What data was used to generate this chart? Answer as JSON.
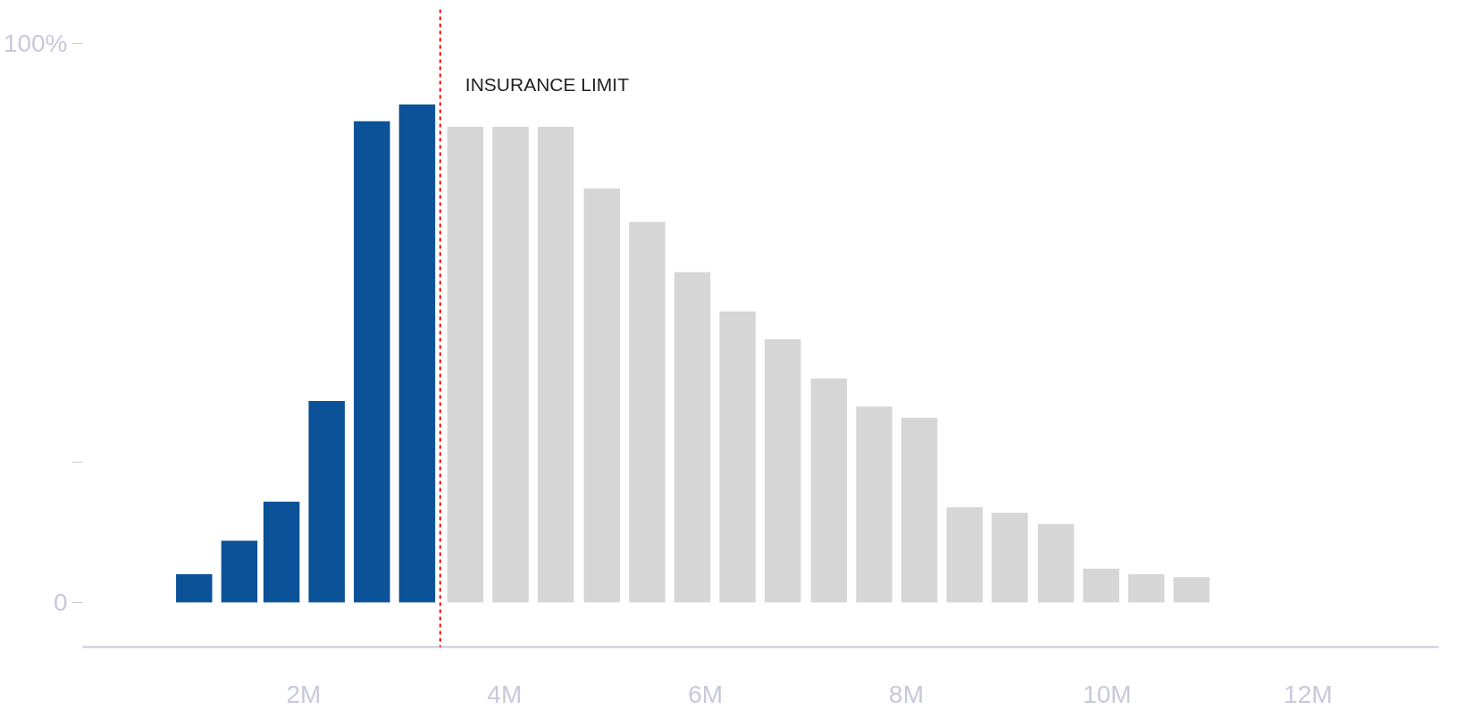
{
  "chart_data": {
    "type": "bar",
    "series": [
      {
        "color": "#0b5298",
        "x": [
          0.91,
          1.36,
          1.78,
          2.23,
          2.68,
          3.13
        ],
        "values": [
          5,
          11,
          18,
          36,
          86,
          89
        ]
      },
      {
        "color": "#d6d6d6",
        "x": [
          3.61,
          4.06,
          4.51,
          4.97,
          5.42,
          5.87,
          6.32,
          6.77,
          7.23,
          7.68,
          8.13,
          8.58,
          9.03,
          9.49,
          9.94,
          10.39,
          10.84
        ],
        "values": [
          85,
          85,
          85,
          74,
          68,
          59,
          52,
          47,
          40,
          35,
          33,
          17,
          16,
          14,
          6,
          5,
          4.5
        ]
      }
    ],
    "xlim": [
      -0.2,
      13.3
    ],
    "xticks": [
      {
        "value": 2,
        "label": "2M"
      },
      {
        "value": 4,
        "label": "4M"
      },
      {
        "value": 6,
        "label": "6M"
      },
      {
        "value": 8,
        "label": "8M"
      },
      {
        "value": 10,
        "label": "10M"
      },
      {
        "value": 12,
        "label": "12M"
      }
    ],
    "ylim": [
      -8,
      106
    ],
    "yticks": [
      0,
      {
        "value": 25,
        "label": null
      },
      {
        "value": 100,
        "label": "100%"
      }
    ],
    "ref_lines": [
      {
        "axis": "x",
        "value": 3.36,
        "label": "INSURANCE LIMIT",
        "color": "#ff0000",
        "line_style": "dashed"
      }
    ],
    "grid": false
  }
}
